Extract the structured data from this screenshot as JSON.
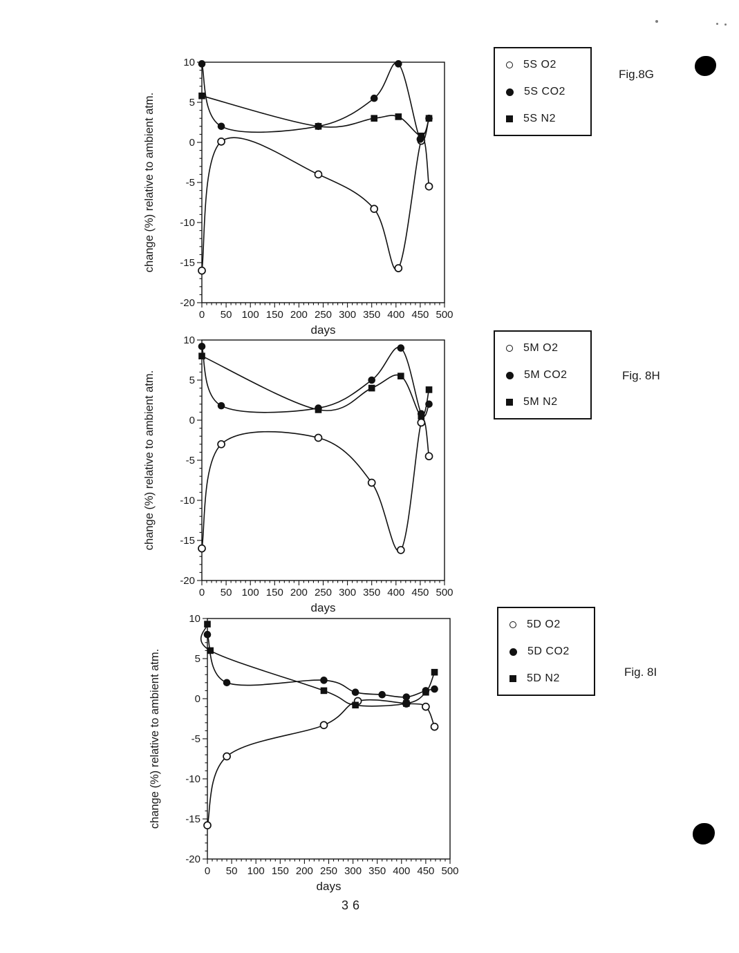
{
  "page": {
    "number": "36"
  },
  "chart_data": {
    "note": "see charts[] — three line charts of gas change vs days"
  },
  "charts": [
    {
      "id": "5S",
      "fig_label": "Fig.8G",
      "type": "line",
      "xlabel": "days",
      "ylabel": "change (%) relative to ambient atm.",
      "xlim": [
        0,
        500
      ],
      "ylim": [
        -20,
        10
      ],
      "xtick_step": 50,
      "xminor_step": 10,
      "ytick_step": 5,
      "yminor_step": 1,
      "legend": [
        {
          "label": "5S O2",
          "marker": "open-circle"
        },
        {
          "label": "5S CO2",
          "marker": "filled-circle"
        },
        {
          "label": "5S N2",
          "marker": "filled-square"
        }
      ],
      "series": [
        {
          "name": "5S O2",
          "marker": "open-circle",
          "points": [
            [
              0,
              -16
            ],
            [
              40,
              0.1
            ],
            [
              240,
              -4
            ],
            [
              355,
              -8.3
            ],
            [
              405,
              -15.7
            ],
            [
              452,
              0.2
            ],
            [
              468,
              -5.5
            ]
          ]
        },
        {
          "name": "5S CO2",
          "marker": "filled-circle",
          "points": [
            [
              0,
              9.8
            ],
            [
              40,
              2
            ],
            [
              240,
              2
            ],
            [
              355,
              5.5
            ],
            [
              405,
              9.8
            ],
            [
              450,
              0.4
            ],
            [
              468,
              3
            ]
          ]
        },
        {
          "name": "5S N2",
          "marker": "filled-square",
          "points": [
            [
              0,
              5.8
            ],
            [
              240,
              2
            ],
            [
              355,
              3
            ],
            [
              405,
              3.2
            ],
            [
              452,
              0.8
            ],
            [
              468,
              3
            ]
          ]
        }
      ]
    },
    {
      "id": "5M",
      "fig_label": "Fig. 8H",
      "type": "line",
      "xlabel": "days",
      "ylabel": "change (%) relative to ambient atm.",
      "xlim": [
        0,
        500
      ],
      "ylim": [
        -20,
        10
      ],
      "xtick_step": 50,
      "xminor_step": 10,
      "ytick_step": 5,
      "yminor_step": 1,
      "legend": [
        {
          "label": "5M O2",
          "marker": "open-circle"
        },
        {
          "label": "5M CO2",
          "marker": "filled-circle"
        },
        {
          "label": "5M N2",
          "marker": "filled-square"
        }
      ],
      "series": [
        {
          "name": "5M O2",
          "marker": "open-circle",
          "points": [
            [
              0,
              -16
            ],
            [
              40,
              -3
            ],
            [
              240,
              -2.2
            ],
            [
              350,
              -7.8
            ],
            [
              410,
              -16.2
            ],
            [
              452,
              -0.3
            ],
            [
              468,
              -4.5
            ]
          ]
        },
        {
          "name": "5M CO2",
          "marker": "filled-circle",
          "points": [
            [
              0,
              9.2
            ],
            [
              40,
              1.8
            ],
            [
              240,
              1.5
            ],
            [
              350,
              5
            ],
            [
              410,
              9
            ],
            [
              452,
              0.8
            ],
            [
              468,
              2
            ]
          ]
        },
        {
          "name": "5M N2",
          "marker": "filled-square",
          "points": [
            [
              0,
              8
            ],
            [
              240,
              1.3
            ],
            [
              350,
              4
            ],
            [
              410,
              5.5
            ],
            [
              452,
              0.5
            ],
            [
              468,
              3.8
            ]
          ]
        }
      ]
    },
    {
      "id": "5D",
      "fig_label": "Fig. 8I",
      "type": "line",
      "xlabel": "days",
      "ylabel": "change (%) relative to ambient atm.",
      "xlim": [
        0,
        500
      ],
      "ylim": [
        -20,
        10
      ],
      "xtick_step": 50,
      "xminor_step": 10,
      "ytick_step": 5,
      "yminor_step": 1,
      "legend": [
        {
          "label": "5D O2",
          "marker": "open-circle"
        },
        {
          "label": "5D CO2",
          "marker": "filled-circle"
        },
        {
          "label": "5D N2",
          "marker": "filled-square"
        }
      ],
      "series": [
        {
          "name": "5D O2",
          "marker": "open-circle",
          "points": [
            [
              0,
              -15.8
            ],
            [
              40,
              -7.2
            ],
            [
              240,
              -3.3
            ],
            [
              310,
              -0.3
            ],
            [
              410,
              -0.6
            ],
            [
              450,
              -1
            ],
            [
              468,
              -3.5
            ]
          ]
        },
        {
          "name": "5D CO2",
          "marker": "filled-circle",
          "points": [
            [
              0,
              8
            ],
            [
              40,
              2
            ],
            [
              240,
              2.3
            ],
            [
              305,
              0.8
            ],
            [
              360,
              0.5
            ],
            [
              410,
              0.2
            ],
            [
              450,
              1
            ],
            [
              468,
              1.2
            ]
          ]
        },
        {
          "name": "5D N2",
          "marker": "filled-square",
          "points": [
            [
              0,
              9.3
            ],
            [
              6,
              6
            ],
            [
              240,
              1
            ],
            [
              305,
              -0.8
            ],
            [
              410,
              -0.6
            ],
            [
              450,
              0.8
            ],
            [
              468,
              3.3
            ]
          ]
        }
      ]
    }
  ]
}
